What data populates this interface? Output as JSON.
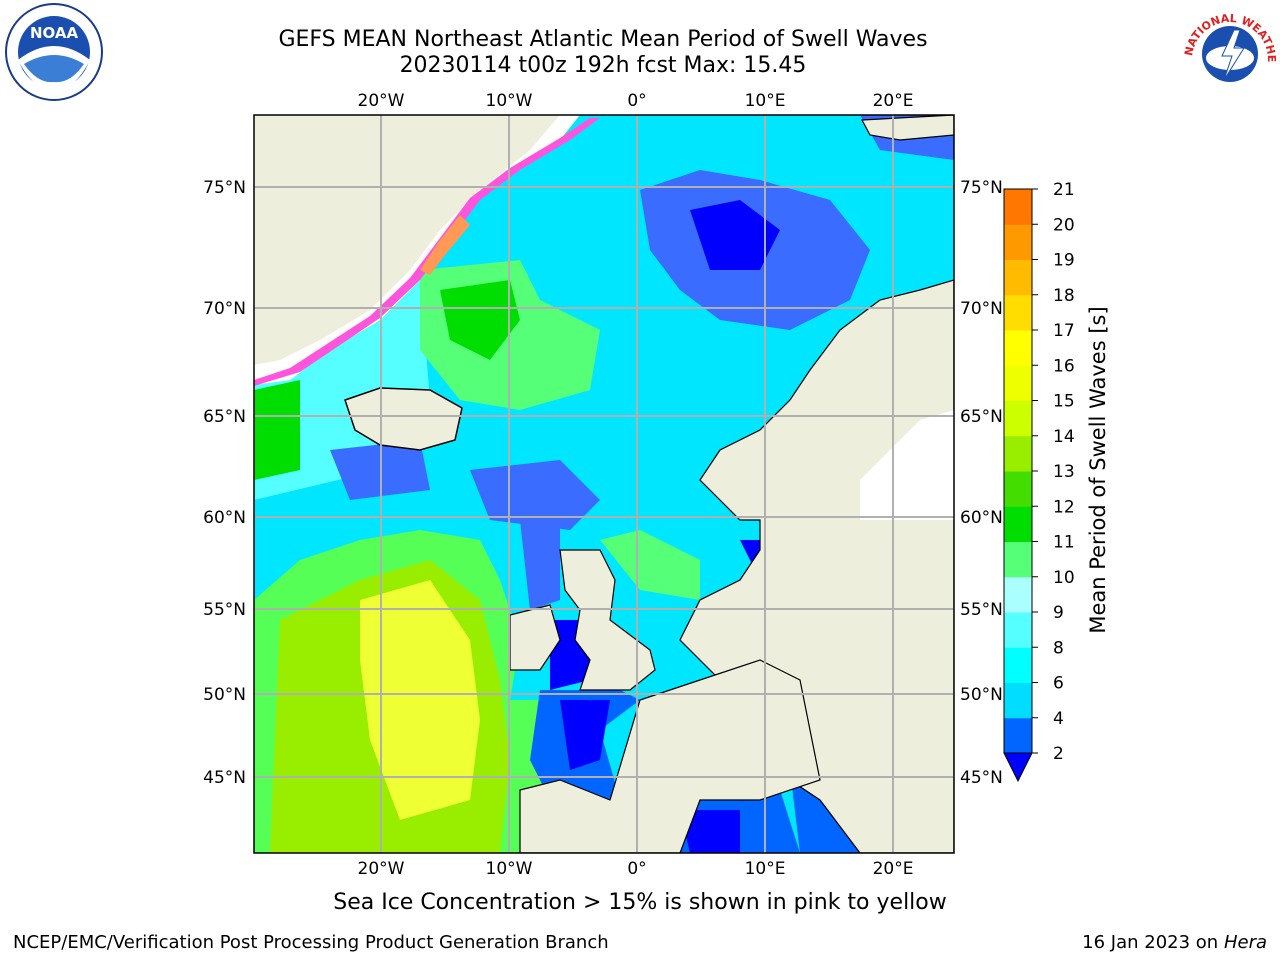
{
  "header": {
    "title_line1": "GEFS MEAN Northeast Atlantic Mean Period of Swell Waves",
    "title_line2": "20230114 t00z 192h fcst   Max: 15.45"
  },
  "logos": {
    "noaa": {
      "icon": "noaa-logo",
      "text": "NOAA"
    },
    "nws": {
      "icon": "nws-logo",
      "text": "NATIONAL WEATHER SERVICE"
    }
  },
  "map": {
    "lon_labels": [
      "20°W",
      "10°W",
      "0°",
      "10°E",
      "20°E"
    ],
    "lat_labels": [
      "75°N",
      "70°N",
      "65°N",
      "60°N",
      "55°N",
      "50°N",
      "45°N"
    ],
    "colors": {
      "land": "#eeeedd",
      "ocean_blue": "#0000ff",
      "ocean_mid": "#0066ff",
      "ocean_cyan": "#00e6ff",
      "ocean_light_cyan": "#55ffff",
      "green": "#00dd00",
      "light_green": "#55ff55",
      "yellow_green": "#ccff00",
      "yellow": "#eeff33",
      "grid": "#b0b0b0",
      "sea_ice_pink": "#ff55dd",
      "sea_ice_orange": "#ff9955"
    }
  },
  "colorbar": {
    "label": "Mean Period of Swell Waves [s]",
    "ticks": [
      "2",
      "4",
      "6",
      "8",
      "9",
      "10",
      "11",
      "12",
      "13",
      "14",
      "15",
      "16",
      "17",
      "18",
      "19",
      "20",
      "21"
    ],
    "colors": [
      "#0000ff",
      "#0066ff",
      "#00ddff",
      "#00ffff",
      "#55ffff",
      "#aaffff",
      "#55ff77",
      "#00dd00",
      "#44dd00",
      "#99ee00",
      "#ccff00",
      "#eeff00",
      "#ffff00",
      "#ffdd00",
      "#ffbb00",
      "#ff9900",
      "#ff7700",
      "#ff5500",
      "#ff3300",
      "#ff0000"
    ]
  },
  "notes": {
    "sea_ice": "Sea Ice Concentration > 15% is shown in pink to yellow"
  },
  "footer": {
    "left": "NCEP/EMC/Verification Post Processing Product Generation Branch",
    "right_date": "16 Jan 2023 on ",
    "right_host": "Hera"
  }
}
